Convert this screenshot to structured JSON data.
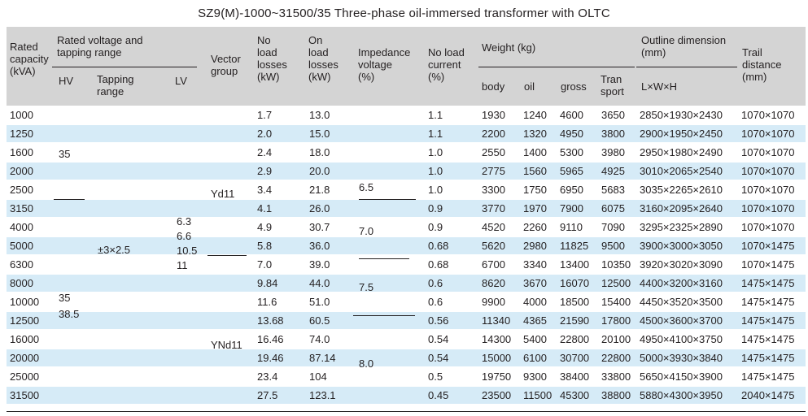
{
  "title": "SZ9(M)-1000~31500/35 Three-phase oil-immersed transformer with OLTC",
  "header": {
    "rated_capacity": [
      "Rated",
      "capacity",
      "(kVA)"
    ],
    "rated_voltage": [
      "Rated voltage and",
      "tapping range"
    ],
    "hv": "HV",
    "tapping": [
      "Tapping",
      "range"
    ],
    "lv": "LV",
    "vector": [
      "Vector",
      "group"
    ],
    "no_load_losses": [
      "No",
      "load",
      "losses",
      "(kW)"
    ],
    "on_load_losses": [
      "On",
      "load",
      "losses",
      "(kW)"
    ],
    "impedance": [
      "Impedance",
      "voltage",
      "(%)"
    ],
    "no_load_current": [
      "No load",
      "current",
      "(%)"
    ],
    "weight": "Weight (kg)",
    "body": "body",
    "oil": "oil",
    "gross": "gross",
    "transport": [
      "Tran",
      "sport"
    ],
    "outline": [
      "Outline dimension",
      "(mm)"
    ],
    "lwh": "L×W×H",
    "trail": [
      "Trail",
      "distance",
      "(mm)"
    ]
  },
  "merged": {
    "hv_a": "35",
    "hv_b": [
      "35",
      "38.5"
    ],
    "tapping": "±3×2.5",
    "lv": [
      "6.3",
      "6.6",
      "10.5",
      "11"
    ],
    "vector_a": "Yd11",
    "vector_b": "YNd11",
    "imp_a": "6.5",
    "imp_b": "7.0",
    "imp_c": "7.5",
    "imp_d": "8.0"
  },
  "rows": [
    {
      "capacity": "1000",
      "no_load": "1.7",
      "on_load": "13.0",
      "current": "1.1",
      "body": "1930",
      "oil": "1240",
      "gross": "4600",
      "transport": "3650",
      "dim": "2850×1930×2430",
      "trail": "1070×1070"
    },
    {
      "capacity": "1250",
      "no_load": "2.0",
      "on_load": "15.0",
      "current": "1.1",
      "body": "2200",
      "oil": "1320",
      "gross": "4950",
      "transport": "3800",
      "dim": "2900×1950×2450",
      "trail": "1070×1070"
    },
    {
      "capacity": "1600",
      "no_load": "2.4",
      "on_load": "18.0",
      "current": "1.0",
      "body": "2550",
      "oil": "1400",
      "gross": "5300",
      "transport": "3980",
      "dim": "2950×1980×2490",
      "trail": "1070×1070"
    },
    {
      "capacity": "2000",
      "no_load": "2.9",
      "on_load": "20.0",
      "current": "1.0",
      "body": "2775",
      "oil": "1560",
      "gross": "5965",
      "transport": "4925",
      "dim": "3010×2065×2540",
      "trail": "1070×1070"
    },
    {
      "capacity": "2500",
      "no_load": "3.4",
      "on_load": "21.8",
      "current": "1.0",
      "body": "3300",
      "oil": "1750",
      "gross": "6950",
      "transport": "5683",
      "dim": "3035×2265×2610",
      "trail": "1070×1070"
    },
    {
      "capacity": "3150",
      "no_load": "4.1",
      "on_load": "26.0",
      "current": "0.9",
      "body": "3770",
      "oil": "1970",
      "gross": "7900",
      "transport": "6075",
      "dim": "3160×2095×2640",
      "trail": "1070×1070"
    },
    {
      "capacity": "4000",
      "no_load": "4.9",
      "on_load": "30.7",
      "current": "0.9",
      "body": "4520",
      "oil": "2260",
      "gross": "9110",
      "transport": "7090",
      "dim": "3295×2325×2890",
      "trail": "1070×1070"
    },
    {
      "capacity": "5000",
      "no_load": "5.8",
      "on_load": "36.0",
      "current": "0.68",
      "body": "5620",
      "oil": "2980",
      "gross": "11825",
      "transport": "9500",
      "dim": "3900×3000×3050",
      "trail": "1070×1475"
    },
    {
      "capacity": "6300",
      "no_load": "7.0",
      "on_load": "39.0",
      "current": "0.68",
      "body": "6700",
      "oil": "3340",
      "gross": "13400",
      "transport": "10350",
      "dim": "3920×3020×3090",
      "trail": "1070×1475"
    },
    {
      "capacity": "8000",
      "no_load": "9.84",
      "on_load": "44.0",
      "current": "0.6",
      "body": "8620",
      "oil": "3670",
      "gross": "16070",
      "transport": "12500",
      "dim": "4400×3200×3160",
      "trail": "1475×1475"
    },
    {
      "capacity": "10000",
      "no_load": "11.6",
      "on_load": "51.0",
      "current": "0.6",
      "body": "9900",
      "oil": "4000",
      "gross": "18500",
      "transport": "15400",
      "dim": "4450×3520×3500",
      "trail": "1475×1475"
    },
    {
      "capacity": "12500",
      "no_load": "13.68",
      "on_load": "60.5",
      "current": "0.56",
      "body": "11340",
      "oil": "4365",
      "gross": "21590",
      "transport": "17800",
      "dim": "4500×3600×3700",
      "trail": "1475×1475"
    },
    {
      "capacity": "16000",
      "no_load": "16.46",
      "on_load": "74.0",
      "current": "0.54",
      "body": "14300",
      "oil": "5400",
      "gross": "22800",
      "transport": "20100",
      "dim": "4950×4100×3750",
      "trail": "1475×1475"
    },
    {
      "capacity": "20000",
      "no_load": "19.46",
      "on_load": "87.14",
      "current": "0.54",
      "body": "15000",
      "oil": "6100",
      "gross": "30700",
      "transport": "22800",
      "dim": "5000×3930×3840",
      "trail": "1475×1475"
    },
    {
      "capacity": "25000",
      "no_load": "23.4",
      "on_load": "104",
      "current": "0.5",
      "body": "19750",
      "oil": "9300",
      "gross": "38400",
      "transport": "33800",
      "dim": "5650×4150×3900",
      "trail": "1475×1475"
    },
    {
      "capacity": "31500",
      "no_load": "27.5",
      "on_load": "123.1",
      "current": "0.45",
      "body": "23500",
      "oil": "11500",
      "gross": "45300",
      "transport": "38800",
      "dim": "5880×4300×3950",
      "trail": "2040×1475"
    }
  ]
}
